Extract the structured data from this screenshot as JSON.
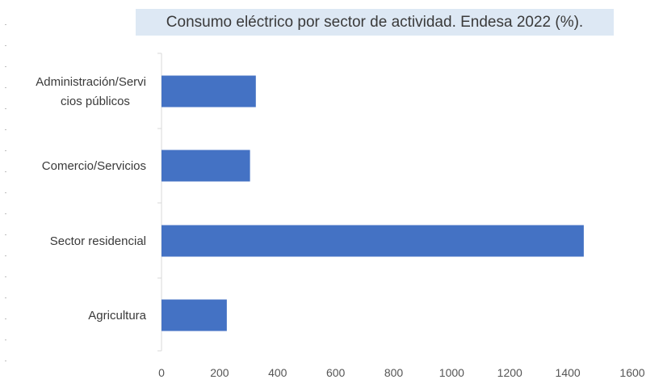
{
  "chart_data": {
    "type": "bar",
    "orientation": "horizontal",
    "title": "Consumo eléctrico por sector de actividad. Endesa 2022 (%).",
    "categories": [
      [
        "Administración/Servi",
        "cios públicos"
      ],
      [
        "Comercio/Servicios"
      ],
      [
        "Sector residencial"
      ],
      [
        "Agricultura"
      ]
    ],
    "values": [
      325,
      305,
      1455,
      225
    ],
    "xlim": [
      0,
      1600
    ],
    "xticks": [
      "0",
      "200",
      "400",
      "600",
      "800",
      "1000",
      "1200",
      "1400",
      "1600"
    ],
    "grid": false,
    "bar_color": "#4472c4",
    "axis_color": "#d9d9d9",
    "title_background": "#dde8f4"
  }
}
